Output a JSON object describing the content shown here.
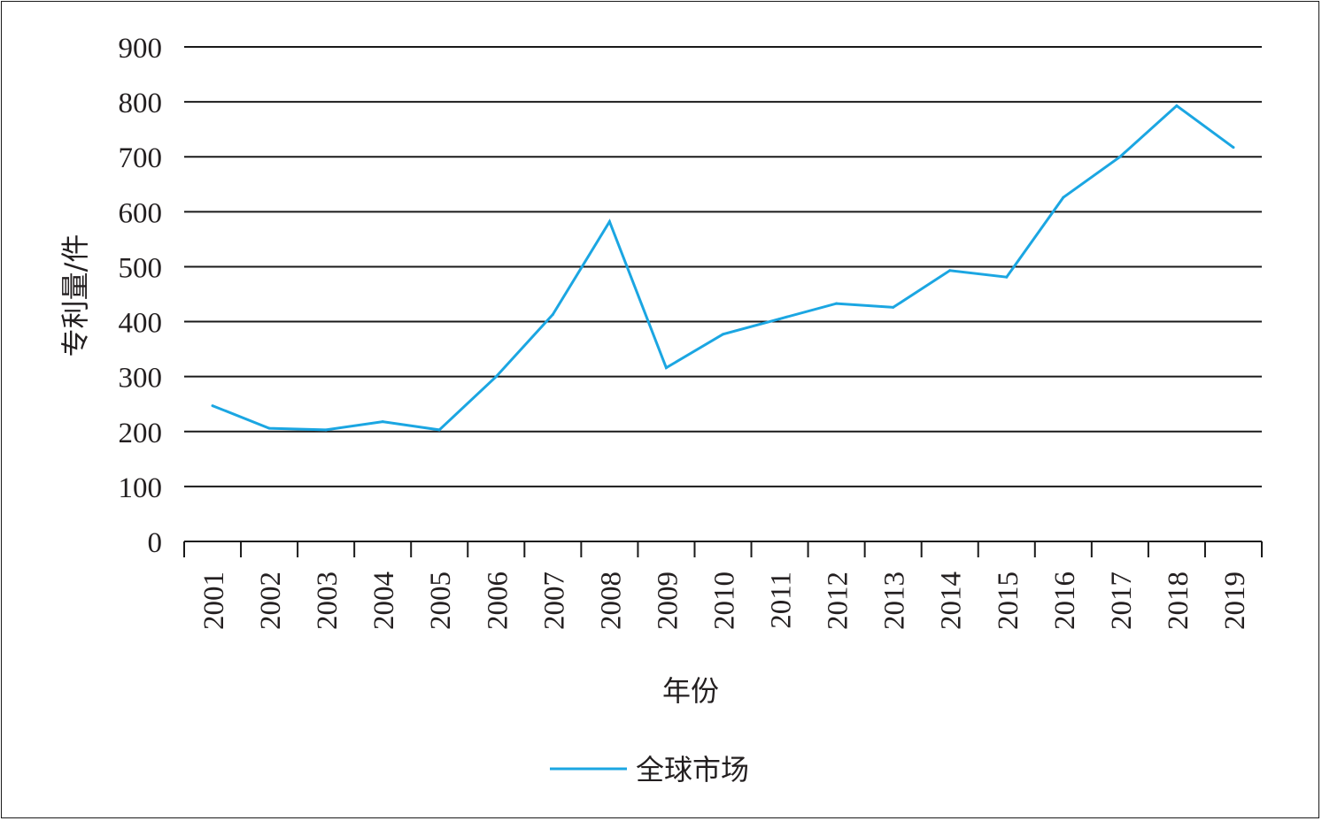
{
  "chart_data": {
    "type": "line",
    "title": "",
    "xlabel": "年份",
    "ylabel": "专利量/件",
    "categories": [
      "2001",
      "2002",
      "2003",
      "2004",
      "2005",
      "2006",
      "2007",
      "2008",
      "2009",
      "2010",
      "2011",
      "2012",
      "2013",
      "2014",
      "2015",
      "2016",
      "2017",
      "2018",
      "2019"
    ],
    "series": [
      {
        "name": "全球市场",
        "color": "#1ba6e2",
        "values": [
          247,
          206,
          203,
          218,
          203,
          300,
          413,
          582,
          316,
          377,
          405,
          433,
          426,
          493,
          481,
          626,
          700,
          793,
          717
        ]
      }
    ],
    "ylim": [
      0,
      900
    ],
    "yticks": [
      "0",
      "100",
      "200",
      "300",
      "400",
      "500",
      "600",
      "700",
      "800",
      "900"
    ],
    "grid": "horizontal",
    "legend": "bottom-center"
  }
}
